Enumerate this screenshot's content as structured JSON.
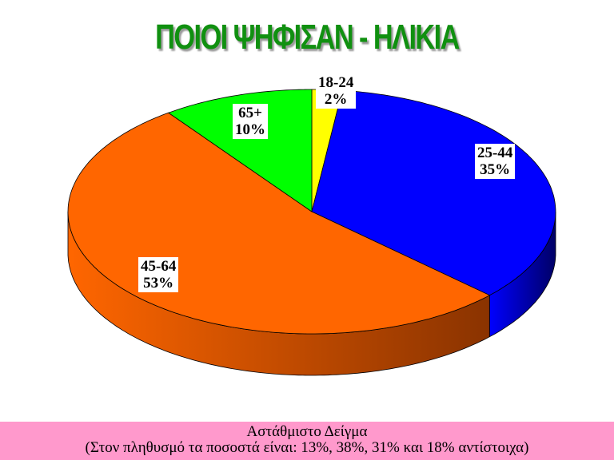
{
  "chart_data": {
    "type": "pie",
    "title": "ΠΟΙΟΙ ΨΗΦΙΣΑΝ - ΗΛΙΚΙΑ",
    "style": "3d",
    "categories": [
      "18-24",
      "25-44",
      "45-64",
      "65+"
    ],
    "values": [
      2,
      35,
      53,
      10
    ],
    "value_labels": [
      "2%",
      "35%",
      "53%",
      "10%"
    ],
    "colors": [
      "#ffff00",
      "#0000ff",
      "#ff6600",
      "#00ff00"
    ],
    "side_colors": [
      "#888800",
      "#000066",
      "#8a3300",
      "#008800"
    ]
  },
  "footer": {
    "line1": "Αστάθμιστο Δείγμα",
    "line2": "(Στον πληθυσμό τα ποσοστά είναι: 13%, 38%, 31% και 18% αντίστοιχα)",
    "background": "#ff99cc"
  }
}
